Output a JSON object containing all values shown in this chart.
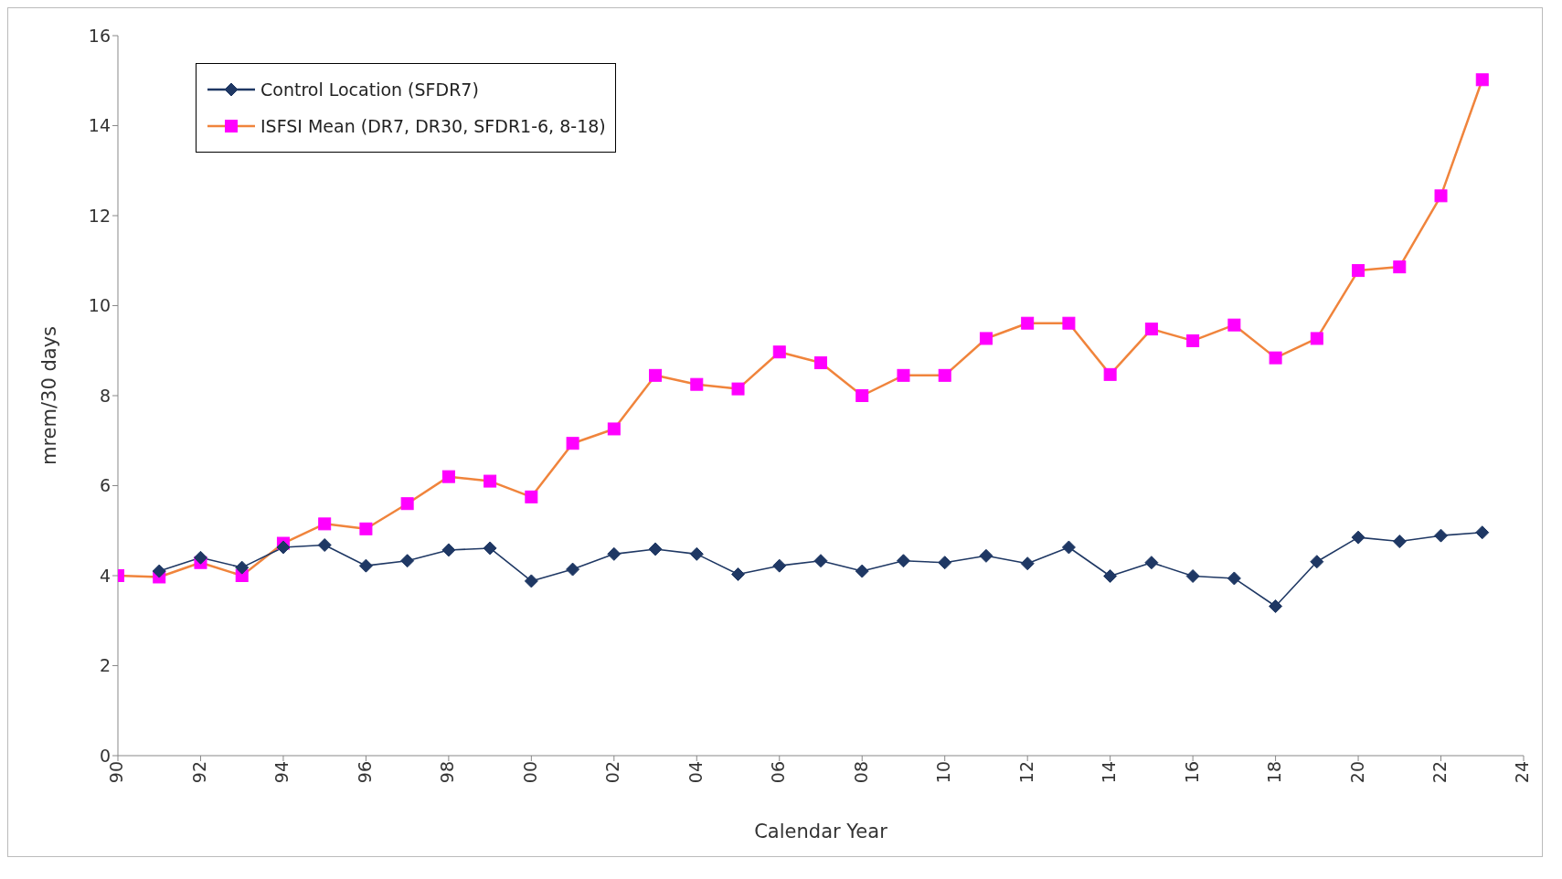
{
  "chart_data": {
    "type": "line",
    "xlabel": "Calendar Year",
    "ylabel": "mrem/30 days",
    "x": [
      1990,
      1991,
      1992,
      1993,
      1994,
      1995,
      1996,
      1997,
      1998,
      1999,
      2000,
      2001,
      2002,
      2003,
      2004,
      2005,
      2006,
      2007,
      2008,
      2009,
      2010,
      2011,
      2012,
      2013,
      2014,
      2015,
      2016,
      2017,
      2018,
      2019,
      2020,
      2021,
      2022,
      2023
    ],
    "series": [
      {
        "name": "Control Location (SFDR7)",
        "color": "#1f3864",
        "marker": "diamond",
        "values": [
          null,
          4.1,
          4.4,
          4.18,
          4.63,
          4.68,
          4.22,
          4.33,
          4.57,
          4.61,
          3.88,
          4.14,
          4.48,
          4.59,
          4.48,
          4.03,
          4.22,
          4.33,
          4.1,
          4.33,
          4.29,
          4.44,
          4.27,
          4.63,
          3.99,
          4.29,
          3.99,
          3.94,
          3.32,
          4.31,
          4.85,
          4.76,
          4.89,
          4.96
        ]
      },
      {
        "name": "ISFSI Mean (DR7, DR30, SFDR1-6, 8-18)",
        "color": "#f0843c",
        "marker": "square",
        "colors": [
          "#ff00ff",
          "#ff00ff",
          "#ff00ff",
          "#ff00ff",
          "#ff00ff",
          "#ff00ff",
          "#ff00ff",
          "#ff00ff",
          "#ff00ff",
          "#ff00ff",
          "#ff00ff",
          "#ff00ff",
          "#ff00ff",
          "#ff00ff",
          "#ff00ff",
          "#ff00ff",
          "#ff00ff",
          "#ff00ff",
          "#ff00ff",
          "#ff00ff",
          "#ff00ff",
          "#ff00ff",
          "#ff00ff",
          "#ff00ff",
          "#ff00ff",
          "#ff00ff",
          "#ff00ff",
          "#ff00ff",
          "#ff00ff",
          "#ff00ff",
          "#ff00ff",
          "#ff00ff",
          "#ff00ff",
          "#ff00ff"
        ],
        "values": [
          4.0,
          3.97,
          4.29,
          4.0,
          4.72,
          5.15,
          5.04,
          5.6,
          6.2,
          6.1,
          5.75,
          6.94,
          7.26,
          8.45,
          8.25,
          8.15,
          8.97,
          8.73,
          8.0,
          8.45,
          8.45,
          9.27,
          9.61,
          9.61,
          8.47,
          9.48,
          9.22,
          9.57,
          8.84,
          9.27,
          10.78,
          10.86,
          12.44,
          15.02
        ]
      }
    ],
    "xlim": [
      1990,
      2024
    ],
    "xticks": [
      {
        "value": 1990,
        "label": "90"
      },
      {
        "value": 1992,
        "label": "92"
      },
      {
        "value": 1994,
        "label": "94"
      },
      {
        "value": 1996,
        "label": "96"
      },
      {
        "value": 1998,
        "label": "98"
      },
      {
        "value": 2000,
        "label": "00"
      },
      {
        "value": 2002,
        "label": "02"
      },
      {
        "value": 2004,
        "label": "04"
      },
      {
        "value": 2006,
        "label": "06"
      },
      {
        "value": 2008,
        "label": "08"
      },
      {
        "value": 2010,
        "label": "10"
      },
      {
        "value": 2012,
        "label": "12"
      },
      {
        "value": 2014,
        "label": "14"
      },
      {
        "value": 2016,
        "label": "16"
      },
      {
        "value": 2018,
        "label": "18"
      },
      {
        "value": 2020,
        "label": "20"
      },
      {
        "value": 2022,
        "label": "22"
      },
      {
        "value": 2024,
        "label": "24"
      }
    ],
    "ylim": [
      0,
      16
    ],
    "yticks": [
      0,
      2,
      4,
      6,
      8,
      10,
      12,
      14,
      16
    ],
    "grid": false,
    "legend": "top left"
  }
}
